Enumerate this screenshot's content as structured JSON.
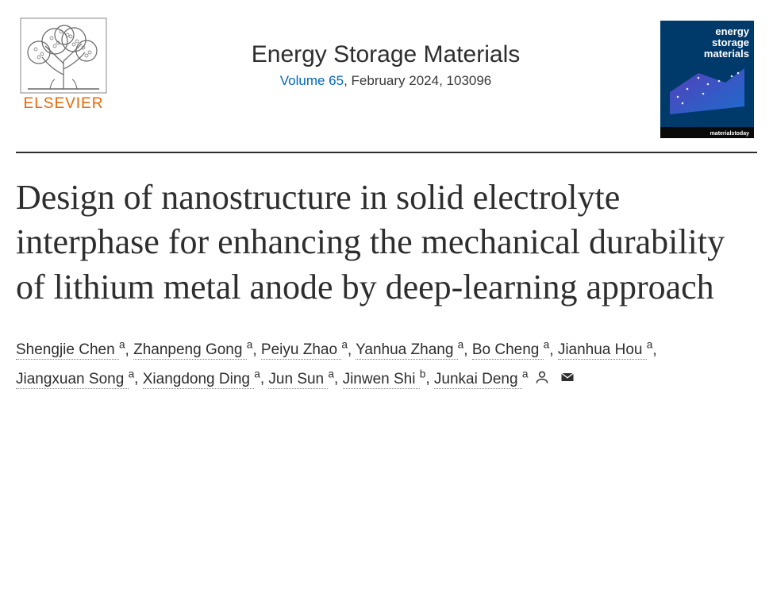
{
  "publisher": {
    "name": "ELSEVIER",
    "brand_color": "#eb6500"
  },
  "journal": {
    "title": "Energy Storage Materials",
    "volume_text": "Volume 65",
    "issue_text": ", February 2024, 103096",
    "link_color": "#0066c0",
    "cover": {
      "background": "#003a6b",
      "accent_start": "#5a3fbf",
      "accent_end": "#1f6fd1",
      "title_line1": "energy",
      "title_line2": "storage",
      "title_line3": "materials",
      "text_color": "#ffffff",
      "footer_bg": "#0a0a0a"
    }
  },
  "article": {
    "title": "Design of nanostructure in solid electrolyte interphase for enhancing the mechanical durability of lithium metal anode by deep-learning approach",
    "title_fontsize": 44,
    "text_color": "#2e2e2e"
  },
  "authors": [
    {
      "name": "Shengjie Chen",
      "affil": "a"
    },
    {
      "name": "Zhanpeng Gong",
      "affil": "a"
    },
    {
      "name": "Peiyu Zhao",
      "affil": "a"
    },
    {
      "name": "Yanhua Zhang",
      "affil": "a"
    },
    {
      "name": "Bo Cheng",
      "affil": "a"
    },
    {
      "name": "Jianhua Hou",
      "affil": "a"
    },
    {
      "name": "Jiangxuan Song",
      "affil": "a"
    },
    {
      "name": "Xiangdong Ding",
      "affil": "a"
    },
    {
      "name": "Jun Sun",
      "affil": "a"
    },
    {
      "name": "Jinwen Shi",
      "affil": "b"
    },
    {
      "name": "Junkai Deng",
      "affil": "a"
    }
  ],
  "styling": {
    "body_bg": "#ffffff",
    "divider_color": "#2e2e2e",
    "dotted_underline_color": "#7a7a7a",
    "font_serif": "Georgia",
    "font_sans": "Segoe UI"
  }
}
